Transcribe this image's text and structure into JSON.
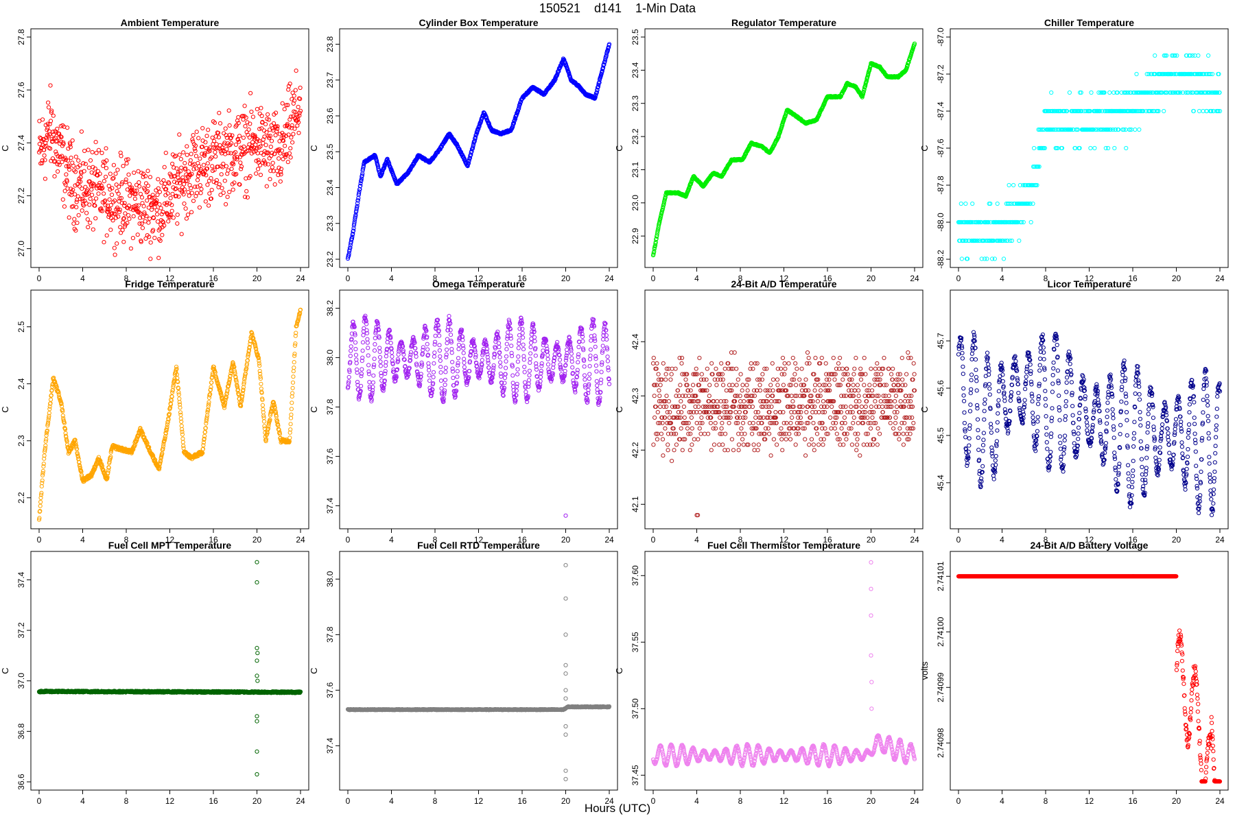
{
  "page_title": "150521    d141    1-Min Data",
  "x_axis_label": "Hours (UTC)",
  "chart_data": [
    {
      "type": "scatter",
      "title": "Ambient Temperature",
      "ylabel": "C",
      "color": "#ff0000",
      "xlim": [
        0,
        24
      ],
      "ylim": [
        26.96,
        27.8
      ],
      "xticks": [
        0,
        4,
        8,
        12,
        16,
        20,
        24
      ],
      "yticks": [
        27.0,
        27.2,
        27.4,
        27.6,
        27.8
      ],
      "ytick_labels": [
        "27.0",
        "27.2",
        "27.4",
        "27.6",
        "27.8"
      ],
      "pattern": "noise",
      "trend": [
        [
          0,
          27.35
        ],
        [
          1,
          27.45
        ],
        [
          3,
          27.25
        ],
        [
          8,
          27.18
        ],
        [
          11,
          27.15
        ],
        [
          14,
          27.3
        ],
        [
          20,
          27.4
        ],
        [
          22,
          27.35
        ],
        [
          24,
          27.55
        ]
      ],
      "amplitude": 0.17,
      "count": 900
    },
    {
      "type": "scatter",
      "title": "Cylinder Box Temperature",
      "ylabel": "C",
      "color": "#0000ff",
      "xlim": [
        0,
        24
      ],
      "ylim": [
        23.2,
        23.82
      ],
      "xticks": [
        0,
        4,
        8,
        12,
        16,
        20,
        24
      ],
      "yticks": [
        23.2,
        23.3,
        23.4,
        23.5,
        23.6,
        23.7,
        23.8
      ],
      "ytick_labels": [
        "23.2",
        "23.3",
        "23.4",
        "23.5",
        "23.6",
        "23.7",
        "23.8"
      ],
      "pattern": "smooth",
      "trend": [
        [
          0,
          23.2
        ],
        [
          0.5,
          23.28
        ],
        [
          1,
          23.38
        ],
        [
          1.5,
          23.47
        ],
        [
          2.5,
          23.49
        ],
        [
          3,
          23.43
        ],
        [
          3.6,
          23.48
        ],
        [
          4.5,
          23.41
        ],
        [
          5.5,
          23.44
        ],
        [
          6.5,
          23.49
        ],
        [
          7.5,
          23.47
        ],
        [
          8.5,
          23.51
        ],
        [
          9.3,
          23.55
        ],
        [
          10,
          23.52
        ],
        [
          11,
          23.46
        ],
        [
          11.8,
          23.55
        ],
        [
          12.5,
          23.61
        ],
        [
          13.2,
          23.56
        ],
        [
          14,
          23.55
        ],
        [
          15,
          23.56
        ],
        [
          16,
          23.65
        ],
        [
          17,
          23.68
        ],
        [
          18,
          23.66
        ],
        [
          19,
          23.7
        ],
        [
          19.8,
          23.76
        ],
        [
          20.5,
          23.7
        ],
        [
          21.3,
          23.68
        ],
        [
          21.8,
          23.66
        ],
        [
          22.7,
          23.65
        ],
        [
          23.3,
          23.72
        ],
        [
          24,
          23.8
        ]
      ],
      "amplitude": 0.005,
      "count": 900
    },
    {
      "type": "scatter",
      "title": "Regulator Temperature",
      "ylabel": "C",
      "color": "#00ee00",
      "xlim": [
        0,
        24
      ],
      "ylim": [
        22.83,
        23.5
      ],
      "xticks": [
        0,
        4,
        8,
        12,
        16,
        20,
        24
      ],
      "yticks": [
        22.9,
        23.0,
        23.1,
        23.2,
        23.3,
        23.4,
        23.5
      ],
      "ytick_labels": [
        "22.9",
        "23.0",
        "23.1",
        "23.2",
        "23.3",
        "23.4",
        "23.5"
      ],
      "pattern": "smooth",
      "trend": [
        [
          0,
          22.84
        ],
        [
          0.5,
          22.93
        ],
        [
          1.2,
          23.03
        ],
        [
          2.3,
          23.03
        ],
        [
          3,
          23.02
        ],
        [
          3.7,
          23.08
        ],
        [
          4.6,
          23.05
        ],
        [
          5.5,
          23.09
        ],
        [
          6.3,
          23.08
        ],
        [
          7.2,
          23.13
        ],
        [
          8.2,
          23.13
        ],
        [
          9,
          23.18
        ],
        [
          10,
          23.17
        ],
        [
          10.7,
          23.15
        ],
        [
          11.5,
          23.2
        ],
        [
          12.3,
          23.28
        ],
        [
          13.2,
          23.26
        ],
        [
          14,
          23.24
        ],
        [
          15,
          23.25
        ],
        [
          16,
          23.32
        ],
        [
          17.2,
          23.32
        ],
        [
          17.8,
          23.36
        ],
        [
          18.6,
          23.35
        ],
        [
          19.2,
          23.32
        ],
        [
          20,
          23.42
        ],
        [
          20.8,
          23.41
        ],
        [
          21.5,
          23.38
        ],
        [
          22.5,
          23.38
        ],
        [
          23.2,
          23.4
        ],
        [
          24,
          23.48
        ]
      ],
      "amplitude": 0.004,
      "count": 900
    },
    {
      "type": "scatter",
      "title": "Chiller Temperature",
      "ylabel": "C",
      "color": "#00ffff",
      "xlim": [
        0,
        24
      ],
      "ylim": [
        -88.2,
        -87.0
      ],
      "xticks": [
        0,
        4,
        8,
        12,
        16,
        20,
        24
      ],
      "yticks": [
        -88.2,
        -88.0,
        -87.8,
        -87.6,
        -87.4,
        -87.2,
        -87.0
      ],
      "ytick_labels": [
        "-88.2",
        "-88.0",
        "-87.8",
        "-87.6",
        "-87.4",
        "-87.2",
        "-87.0"
      ],
      "pattern": "quantized",
      "quantum": 0.1,
      "trend": [
        [
          0,
          -88.05
        ],
        [
          4,
          -88.05
        ],
        [
          5,
          -87.95
        ],
        [
          6.5,
          -87.9
        ],
        [
          8,
          -87.45
        ],
        [
          12,
          -87.45
        ],
        [
          16,
          -87.4
        ],
        [
          18,
          -87.25
        ],
        [
          20,
          -87.2
        ],
        [
          22,
          -87.25
        ],
        [
          24,
          -87.35
        ]
      ],
      "amplitude": 0.16,
      "count": 700
    },
    {
      "type": "scatter",
      "title": "Fridge Temperature",
      "ylabel": "C",
      "color": "#ffa500",
      "xlim": [
        0,
        24
      ],
      "ylim": [
        2.16,
        2.55
      ],
      "xticks": [
        0,
        4,
        8,
        12,
        16,
        20,
        24
      ],
      "yticks": [
        2.2,
        2.3,
        2.4,
        2.5
      ],
      "ytick_labels": [
        "2.2",
        "2.3",
        "2.4",
        "2.5"
      ],
      "pattern": "smooth",
      "trend": [
        [
          0,
          2.16
        ],
        [
          0.5,
          2.28
        ],
        [
          1.3,
          2.41
        ],
        [
          2,
          2.37
        ],
        [
          2.7,
          2.28
        ],
        [
          3.3,
          2.3
        ],
        [
          4,
          2.23
        ],
        [
          4.8,
          2.24
        ],
        [
          5.5,
          2.27
        ],
        [
          6.2,
          2.23
        ],
        [
          6.7,
          2.29
        ],
        [
          8.5,
          2.28
        ],
        [
          9.3,
          2.32
        ],
        [
          10,
          2.29
        ],
        [
          11,
          2.25
        ],
        [
          11.8,
          2.33
        ],
        [
          12.6,
          2.43
        ],
        [
          13.3,
          2.28
        ],
        [
          14,
          2.27
        ],
        [
          15,
          2.28
        ],
        [
          16,
          2.43
        ],
        [
          17,
          2.36
        ],
        [
          17.8,
          2.44
        ],
        [
          18.5,
          2.36
        ],
        [
          19.5,
          2.49
        ],
        [
          20.2,
          2.44
        ],
        [
          20.8,
          2.3
        ],
        [
          21.5,
          2.37
        ],
        [
          22.2,
          2.3
        ],
        [
          23,
          2.3
        ],
        [
          23.6,
          2.5
        ],
        [
          24,
          2.53
        ]
      ],
      "amplitude": 0.006,
      "count": 900
    },
    {
      "type": "scatter",
      "title": "Omega Temperature",
      "ylabel": "C",
      "color": "#a020f0",
      "xlim": [
        0,
        24
      ],
      "ylim": [
        37.34,
        38.24
      ],
      "xticks": [
        0,
        4,
        8,
        12,
        16,
        20,
        24
      ],
      "yticks": [
        37.4,
        37.6,
        37.8,
        38.0,
        38.2
      ],
      "ytick_labels": [
        "37.4",
        "37.6",
        "37.8",
        "38.0",
        "38.2"
      ],
      "pattern": "oscillate",
      "trend": [
        [
          0,
          38.0
        ],
        [
          24,
          37.98
        ]
      ],
      "amplitude": 0.17,
      "period": 1.1,
      "outliers": [
        [
          20,
          37.36
        ]
      ],
      "count": 900
    },
    {
      "type": "scatter",
      "title": "24-Bit A/D Temperature",
      "ylabel": "C",
      "color": "#b22222",
      "xlim": [
        0,
        24
      ],
      "ylim": [
        42.07,
        42.48
      ],
      "xticks": [
        0,
        4,
        8,
        12,
        16,
        20,
        24
      ],
      "yticks": [
        42.1,
        42.2,
        42.3,
        42.4
      ],
      "ytick_labels": [
        "42.1",
        "42.2",
        "42.3",
        "42.4"
      ],
      "pattern": "quantized",
      "quantum": 0.01,
      "trend": [
        [
          0,
          42.28
        ],
        [
          24,
          42.29
        ]
      ],
      "amplitude": 0.1,
      "outliers": [
        [
          4,
          42.08
        ],
        [
          4.1,
          42.08
        ]
      ],
      "count": 900
    },
    {
      "type": "scatter",
      "title": "Licor Temperature",
      "ylabel": "C",
      "color": "#00008b",
      "xlim": [
        0,
        24
      ],
      "ylim": [
        45.32,
        45.79
      ],
      "xticks": [
        0,
        4,
        8,
        12,
        16,
        20,
        24
      ],
      "yticks": [
        45.4,
        45.5,
        45.6,
        45.7
      ],
      "ytick_labels": [
        "45.4",
        "45.5",
        "45.6",
        "45.7"
      ],
      "pattern": "oscillate",
      "trend": [
        [
          0,
          45.6
        ],
        [
          3,
          45.52
        ],
        [
          5,
          45.6
        ],
        [
          10,
          45.56
        ],
        [
          16,
          45.5
        ],
        [
          20,
          45.5
        ],
        [
          24,
          45.48
        ]
      ],
      "amplitude": 0.15,
      "period": 1.25,
      "count": 900
    },
    {
      "type": "scatter",
      "title": "Fuel Cell MPT Temperature",
      "ylabel": "C",
      "color": "#006400",
      "xlim": [
        0,
        24
      ],
      "ylim": [
        36.6,
        37.48
      ],
      "xticks": [
        0,
        4,
        8,
        12,
        16,
        20,
        24
      ],
      "yticks": [
        36.6,
        36.8,
        37.0,
        37.2,
        37.4
      ],
      "ytick_labels": [
        "36.6",
        "36.8",
        "37.0",
        "37.2",
        "37.4"
      ],
      "pattern": "flat",
      "trend": [
        [
          0,
          36.958
        ],
        [
          24,
          36.955
        ]
      ],
      "amplitude": 0.006,
      "outliers": [
        [
          20,
          37.47
        ],
        [
          20,
          37.39
        ],
        [
          20,
          37.13
        ],
        [
          20.05,
          37.11
        ],
        [
          20,
          37.08
        ],
        [
          20,
          37.02
        ],
        [
          20.05,
          37.0
        ],
        [
          20,
          36.86
        ],
        [
          20,
          36.84
        ],
        [
          20,
          36.72
        ],
        [
          20,
          36.63
        ]
      ],
      "count": 900
    },
    {
      "type": "scatter",
      "title": "Fuel Cell RTD Temperature",
      "ylabel": "C",
      "color": "#808080",
      "xlim": [
        0,
        24
      ],
      "ylim": [
        37.27,
        38.07
      ],
      "xticks": [
        0,
        4,
        8,
        12,
        16,
        20,
        24
      ],
      "yticks": [
        37.4,
        37.6,
        37.8,
        38.0
      ],
      "ytick_labels": [
        "37.4",
        "37.6",
        "37.8",
        "38.0"
      ],
      "pattern": "flat",
      "trend": [
        [
          0,
          37.53
        ],
        [
          19.8,
          37.53
        ],
        [
          20.2,
          37.54
        ],
        [
          24,
          37.54
        ]
      ],
      "amplitude": 0.003,
      "outliers": [
        [
          20,
          38.05
        ],
        [
          20,
          37.93
        ],
        [
          20,
          37.8
        ],
        [
          20,
          37.69
        ],
        [
          20,
          37.66
        ],
        [
          20,
          37.6
        ],
        [
          20,
          37.57
        ],
        [
          20,
          37.47
        ],
        [
          20,
          37.44
        ],
        [
          20,
          37.31
        ],
        [
          20,
          37.28
        ]
      ],
      "count": 900
    },
    {
      "type": "scatter",
      "title": "Fuel Cell Thermistor Temperature",
      "ylabel": "C",
      "color": "#ee82ee",
      "xlim": [
        0,
        24
      ],
      "ylim": [
        37.445,
        37.612
      ],
      "xticks": [
        0,
        4,
        8,
        12,
        16,
        20,
        24
      ],
      "yticks": [
        37.45,
        37.5,
        37.55,
        37.6
      ],
      "ytick_labels": [
        "37.45",
        "37.50",
        "37.55",
        "37.60"
      ],
      "pattern": "oscillate",
      "trend": [
        [
          0,
          37.465
        ],
        [
          19.8,
          37.465
        ],
        [
          20.5,
          37.475
        ],
        [
          22,
          37.47
        ],
        [
          24,
          37.465
        ]
      ],
      "amplitude": 0.008,
      "period": 1.0,
      "outliers": [
        [
          20,
          37.61
        ],
        [
          20,
          37.59
        ],
        [
          20,
          37.57
        ],
        [
          20,
          37.54
        ],
        [
          20.05,
          37.52
        ],
        [
          20.05,
          37.5
        ]
      ],
      "count": 900
    },
    {
      "type": "scatter",
      "title": "24-Bit A/D Battery Voltage",
      "ylabel": "volts",
      "color": "#ff0000",
      "xlim": [
        0,
        24
      ],
      "ylim": [
        2.740973,
        2.741013
      ],
      "xticks": [
        0,
        4,
        8,
        12,
        16,
        20,
        24
      ],
      "yticks": [
        2.74098,
        2.74099,
        2.741,
        2.74101
      ],
      "ytick_labels": [
        "2.74098",
        "2.74099",
        "2.74100",
        "2.74101"
      ],
      "pattern": "battery",
      "trend": [
        [
          0,
          2.74101
        ],
        [
          20,
          2.74101
        ]
      ],
      "amplitude": 0,
      "count": 900
    }
  ]
}
